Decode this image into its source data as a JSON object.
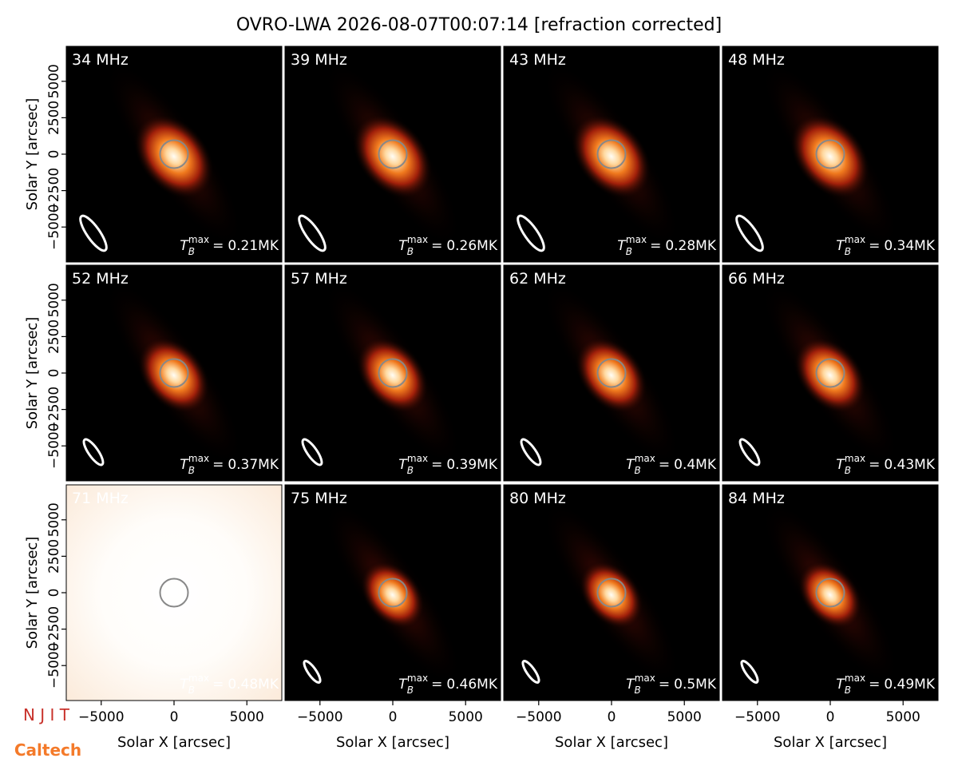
{
  "title": "OVRO-LWA 2026-08-07T00:07:14 [refraction corrected]",
  "axes": {
    "xlabel": "Solar X [arcsec]",
    "ylabel": "Solar Y [arcsec]",
    "xlim": [
      -7400,
      7400
    ],
    "ylim": [
      -7400,
      7400
    ],
    "xticks": [
      {
        "value": -5000,
        "label": "−5000"
      },
      0,
      5000
    ],
    "yticks": [
      {
        "value": -5000,
        "label": "−5000"
      },
      {
        "value": -2500,
        "label": "−2500"
      },
      0,
      2500,
      5000
    ]
  },
  "tmax": {
    "symbol": "T",
    "sub": "B",
    "sup": "max",
    "eq": "="
  },
  "panels": [
    {
      "freq": "34 MHz",
      "tmax_label": "0.21MK"
    },
    {
      "freq": "39 MHz",
      "tmax_label": "0.26MK"
    },
    {
      "freq": "43 MHz",
      "tmax_label": "0.28MK"
    },
    {
      "freq": "48 MHz",
      "tmax_label": "0.34MK"
    },
    {
      "freq": "52 MHz",
      "tmax_label": "0.37MK"
    },
    {
      "freq": "57 MHz",
      "tmax_label": "0.39MK"
    },
    {
      "freq": "62 MHz",
      "tmax_label": "0.4MK"
    },
    {
      "freq": "66 MHz",
      "tmax_label": "0.43MK"
    },
    {
      "freq": "71 MHz",
      "tmax_label": "0.48MK",
      "saturated": true
    },
    {
      "freq": "75 MHz",
      "tmax_label": "0.46MK"
    },
    {
      "freq": "80 MHz",
      "tmax_label": "0.5MK"
    },
    {
      "freq": "84 MHz",
      "tmax_label": "0.49MK"
    }
  ],
  "logos": {
    "njit": "N J I T",
    "caltech": "Caltech"
  }
}
